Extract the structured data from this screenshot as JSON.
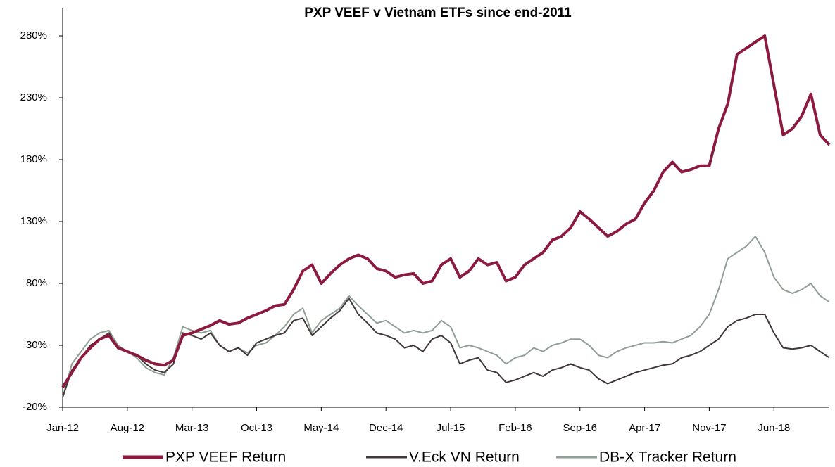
{
  "chart_data": {
    "type": "line",
    "title": "PXP VEEF v Vietnam ETFs since end-2011",
    "categories": [
      "Jan-12",
      null,
      null,
      null,
      null,
      null,
      null,
      "Aug-12",
      null,
      null,
      null,
      null,
      null,
      null,
      "Mar-13",
      null,
      null,
      null,
      null,
      null,
      null,
      "Oct-13",
      null,
      null,
      null,
      null,
      null,
      null,
      "May-14",
      null,
      null,
      null,
      null,
      null,
      null,
      "Dec-14",
      null,
      null,
      null,
      null,
      null,
      null,
      "Jul-15",
      null,
      null,
      null,
      null,
      null,
      null,
      "Feb-16",
      null,
      null,
      null,
      null,
      null,
      null,
      "Sep-16",
      null,
      null,
      null,
      null,
      null,
      null,
      "Apr-17",
      null,
      null,
      null,
      null,
      null,
      null,
      "Nov-17",
      null,
      null,
      null,
      null,
      null,
      null,
      "Jun-18",
      null,
      null,
      null,
      null,
      null,
      null
    ],
    "series": [
      {
        "name": "PXP VEEF Return",
        "color": "#8b1a3e",
        "width": 4,
        "values": [
          -4,
          8,
          20,
          28,
          35,
          38,
          28,
          25,
          22,
          18,
          15,
          14,
          18,
          38,
          40,
          43,
          46,
          50,
          47,
          48,
          52,
          55,
          58,
          62,
          63,
          75,
          90,
          95,
          80,
          88,
          95,
          100,
          103,
          100,
          92,
          90,
          85,
          87,
          88,
          80,
          82,
          95,
          100,
          85,
          90,
          100,
          95,
          97,
          82,
          85,
          95,
          100,
          105,
          115,
          118,
          125,
          138,
          132,
          125,
          118,
          122,
          128,
          132,
          145,
          155,
          170,
          178,
          170,
          172,
          175,
          175,
          205,
          225,
          265,
          270,
          275,
          280,
          240,
          200,
          205,
          215,
          233,
          200,
          192
        ]
      },
      {
        "name": "V.Eck VN Return",
        "color": "#403838",
        "width": 2,
        "values": [
          -12,
          10,
          20,
          30,
          35,
          40,
          28,
          25,
          22,
          15,
          10,
          8,
          15,
          40,
          38,
          35,
          40,
          30,
          25,
          28,
          22,
          32,
          35,
          38,
          40,
          50,
          52,
          38,
          45,
          52,
          58,
          68,
          55,
          48,
          40,
          38,
          35,
          28,
          30,
          25,
          35,
          38,
          32,
          15,
          18,
          20,
          10,
          8,
          0,
          2,
          5,
          8,
          5,
          10,
          12,
          15,
          12,
          10,
          3,
          -1,
          2,
          5,
          8,
          10,
          12,
          14,
          15,
          20,
          22,
          25,
          30,
          35,
          45,
          50,
          52,
          55,
          55,
          40,
          28,
          27,
          28,
          30,
          25,
          20
        ]
      },
      {
        "name": "DB-X Tracker Return",
        "color": "#909e95",
        "width": 2,
        "values": [
          -12,
          15,
          25,
          35,
          40,
          42,
          30,
          25,
          20,
          12,
          8,
          6,
          20,
          45,
          42,
          40,
          42,
          30,
          25,
          28,
          24,
          30,
          32,
          38,
          45,
          55,
          60,
          40,
          50,
          55,
          60,
          70,
          62,
          55,
          48,
          50,
          45,
          40,
          42,
          40,
          42,
          50,
          45,
          28,
          30,
          28,
          25,
          22,
          15,
          20,
          22,
          28,
          25,
          30,
          32,
          35,
          35,
          30,
          22,
          20,
          25,
          28,
          30,
          32,
          32,
          33,
          32,
          35,
          38,
          45,
          55,
          75,
          100,
          105,
          110,
          118,
          105,
          85,
          75,
          72,
          75,
          80,
          70,
          65
        ]
      }
    ],
    "ylim": [
      -20,
      280
    ],
    "yticks": [
      {
        "value": -20,
        "label": "-20%"
      },
      {
        "value": 30,
        "label": "30%"
      },
      {
        "value": 80,
        "label": "80%"
      },
      {
        "value": 130,
        "label": "130%"
      },
      {
        "value": 180,
        "label": "180%"
      },
      {
        "value": 230,
        "label": "230%"
      },
      {
        "value": 280,
        "label": "280%"
      }
    ],
    "grid": false,
    "legend": "bottom"
  }
}
